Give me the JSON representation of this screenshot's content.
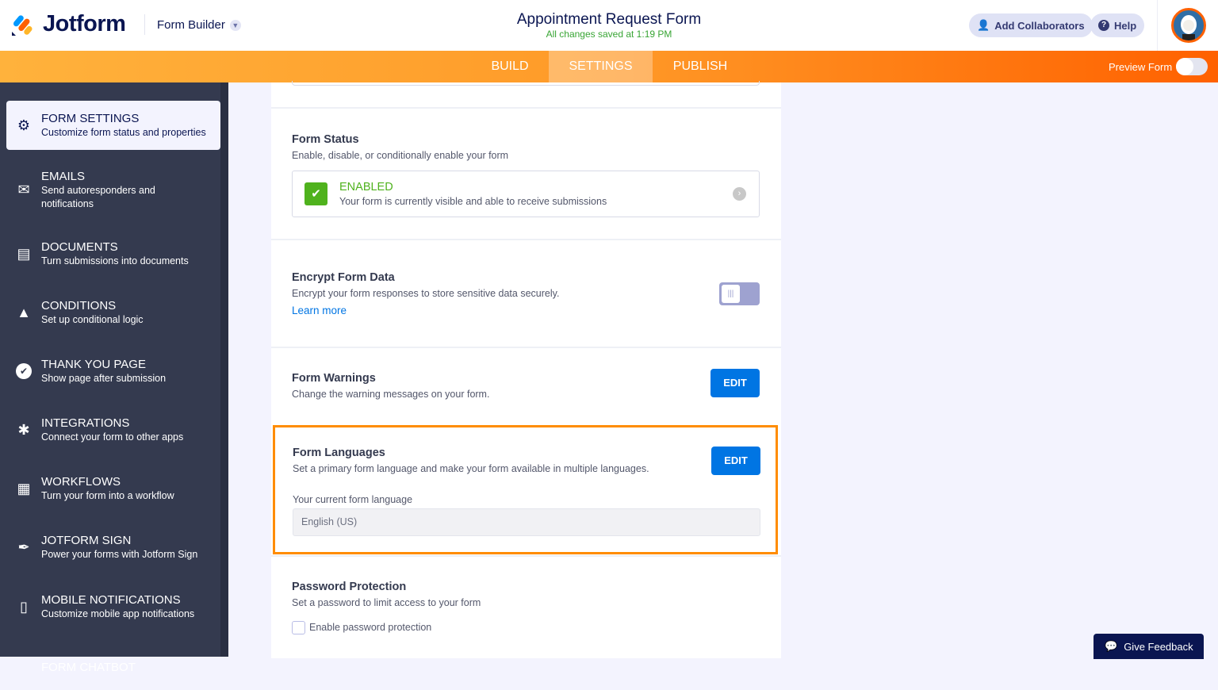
{
  "header": {
    "brand": "Jotform",
    "builder_label": "Form Builder",
    "form_title": "Appointment Request Form",
    "save_status": "All changes saved at 1:19 PM",
    "add_collaborators": "Add Collaborators",
    "help": "Help"
  },
  "nav": {
    "tabs": [
      {
        "label": "BUILD"
      },
      {
        "label": "SETTINGS",
        "active": true
      },
      {
        "label": "PUBLISH"
      }
    ],
    "preview_label": "Preview Form",
    "preview_on": false
  },
  "sidebar": {
    "items": [
      {
        "title": "FORM SETTINGS",
        "desc": "Customize form status and properties",
        "icon": "gear-icon",
        "active": true
      },
      {
        "title": "EMAILS",
        "desc": "Send autoresponders and notifications",
        "icon": "envelope-icon"
      },
      {
        "title": "DOCUMENTS",
        "desc": "Turn submissions into documents",
        "icon": "document-icon"
      },
      {
        "title": "CONDITIONS",
        "desc": "Set up conditional logic",
        "icon": "conditions-icon"
      },
      {
        "title": "THANK YOU PAGE",
        "desc": "Show page after submission",
        "icon": "check-circle-icon"
      },
      {
        "title": "INTEGRATIONS",
        "desc": "Connect your form to other apps",
        "icon": "puzzle-icon"
      },
      {
        "title": "WORKFLOWS",
        "desc": "Turn your form into a workflow",
        "icon": "workflow-icon"
      },
      {
        "title": "JOTFORM SIGN",
        "desc": "Power your forms with Jotform Sign",
        "icon": "pen-icon"
      },
      {
        "title": "MOBILE NOTIFICATIONS",
        "desc": "Customize mobile app notifications",
        "icon": "mobile-icon"
      },
      {
        "title": "FORM CHATBOT",
        "desc": "",
        "icon": ""
      }
    ]
  },
  "settings": {
    "status": {
      "title": "Form Status",
      "desc": "Enable, disable, or conditionally enable your form",
      "state": "ENABLED",
      "state_desc": "Your form is currently visible and able to receive submissions",
      "color": "#4fb21d"
    },
    "encrypt": {
      "title": "Encrypt Form Data",
      "desc": "Encrypt your form responses to store sensitive data securely.",
      "link": "Learn more",
      "on": false
    },
    "warnings": {
      "title": "Form Warnings",
      "desc": "Change the warning messages on your form.",
      "edit": "EDIT"
    },
    "languages": {
      "title": "Form Languages",
      "desc": "Set a primary form language and make your form available in multiple languages.",
      "edit": "EDIT",
      "current_label": "Your current form language",
      "current_value": "English (US)",
      "highlight": "#ff8c00"
    },
    "password": {
      "title": "Password Protection",
      "desc": "Set a password to limit access to your form",
      "checkbox": "Enable password protection",
      "checked": false
    }
  },
  "feedback": "Give Feedback"
}
